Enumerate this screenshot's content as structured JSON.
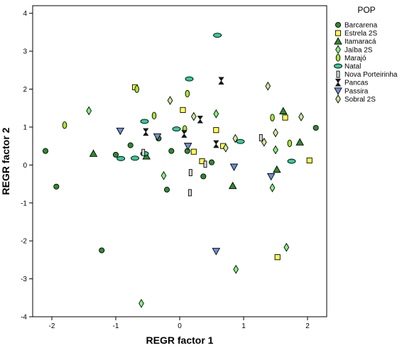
{
  "chart_data": {
    "type": "scatter",
    "xlabel": "REGR factor 1",
    "ylabel": "REGR factor 2",
    "legend_title": "POP",
    "legend_position": "right",
    "xlim": [
      -2.3,
      2.3
    ],
    "ylim": [
      -4,
      4.2
    ],
    "x_ticks": [
      "-2",
      "-1",
      "0",
      "1",
      "2"
    ],
    "y_ticks": [
      "4",
      "3",
      "2",
      "1",
      "0",
      "-1",
      "-2",
      "-3",
      "-4"
    ],
    "grid": false,
    "series": [
      {
        "name": "Barcarena",
        "marker": "circle",
        "color": "#2e8b2e",
        "points": [
          [
            -2.1,
            0.37
          ],
          [
            -1.93,
            -0.57
          ],
          [
            -1.22,
            -2.25
          ],
          [
            -1.0,
            0.27
          ],
          [
            -0.77,
            0.52
          ],
          [
            -0.33,
            0.7
          ],
          [
            -0.2,
            -0.65
          ],
          [
            -0.13,
            0.37
          ],
          [
            0.12,
            0.37
          ],
          [
            0.37,
            -0.3
          ],
          [
            0.5,
            0.07
          ],
          [
            2.13,
            0.98
          ]
        ]
      },
      {
        "name": "Estrela 2S",
        "marker": "square",
        "color": "#ffff4d",
        "points": [
          [
            -0.7,
            2.05
          ],
          [
            0.05,
            1.45
          ],
          [
            0.22,
            0.35
          ],
          [
            0.35,
            0.1
          ],
          [
            0.57,
            0.92
          ],
          [
            0.68,
            0.5
          ],
          [
            1.53,
            -2.43
          ],
          [
            1.65,
            1.25
          ],
          [
            2.03,
            0.12
          ]
        ]
      },
      {
        "name": "Itamaracá",
        "marker": "triangle",
        "color": "#2e8b2e",
        "points": [
          [
            -1.35,
            0.3
          ],
          [
            -0.52,
            0.23
          ],
          [
            0.83,
            -0.55
          ],
          [
            1.52,
            -0.12
          ],
          [
            1.62,
            1.42
          ],
          [
            1.88,
            0.6
          ]
        ]
      },
      {
        "name": "Jaíba 2S",
        "marker": "diamond",
        "color": "#7fff7f",
        "points": [
          [
            -1.42,
            1.43
          ],
          [
            -0.6,
            -3.65
          ],
          [
            -0.25,
            -0.28
          ],
          [
            0.57,
            1.35
          ],
          [
            0.88,
            -2.75
          ],
          [
            1.45,
            -0.6
          ],
          [
            1.5,
            0.4
          ],
          [
            1.67,
            -2.17
          ]
        ]
      },
      {
        "name": "Marajó",
        "marker": "ellipse",
        "color": "#a8e632",
        "points": [
          [
            -1.8,
            1.05
          ],
          [
            -0.67,
            2.0
          ],
          [
            -0.4,
            1.3
          ],
          [
            0.08,
            0.95
          ],
          [
            0.12,
            1.88
          ],
          [
            1.45,
            1.25
          ],
          [
            1.72,
            0.57
          ]
        ]
      },
      {
        "name": "Natal",
        "marker": "wide-ellipse",
        "color": "#33cc99",
        "points": [
          [
            -0.92,
            0.17
          ],
          [
            -0.7,
            0.18
          ],
          [
            -0.55,
            1.15
          ],
          [
            -0.55,
            0.3
          ],
          [
            -0.05,
            0.95
          ],
          [
            0.15,
            2.27
          ],
          [
            0.59,
            3.42
          ],
          [
            0.95,
            0.62
          ],
          [
            1.75,
            0.1
          ]
        ]
      },
      {
        "name": "Nova Porteirinha",
        "marker": "bar",
        "color": "#d9d9d9",
        "points": [
          [
            -0.57,
            0.33
          ],
          [
            0.17,
            -0.2
          ],
          [
            0.16,
            -0.73
          ],
          [
            0.4,
            0.02
          ],
          [
            1.27,
            0.72
          ]
        ]
      },
      {
        "name": "Pancas",
        "marker": "hourglass",
        "color": "#1a1a1a",
        "points": [
          [
            -0.53,
            0.87
          ],
          [
            0.07,
            0.82
          ],
          [
            0.32,
            1.2
          ],
          [
            0.65,
            2.22
          ],
          [
            0.57,
            0.55
          ]
        ]
      },
      {
        "name": "Passira",
        "marker": "triangle-down",
        "color": "#6f8fcf",
        "points": [
          [
            -0.93,
            0.9
          ],
          [
            -0.35,
            0.75
          ],
          [
            0.13,
            0.5
          ],
          [
            0.57,
            -2.27
          ],
          [
            0.85,
            -0.05
          ],
          [
            1.43,
            -0.3
          ]
        ]
      },
      {
        "name": "Sobral 2S",
        "marker": "diamond",
        "color": "#cceb99",
        "points": [
          [
            -0.15,
            1.7
          ],
          [
            0.22,
            1.28
          ],
          [
            0.72,
            0.45
          ],
          [
            0.87,
            0.7
          ],
          [
            1.32,
            0.6
          ],
          [
            1.38,
            2.08
          ],
          [
            1.5,
            0.85
          ],
          [
            1.9,
            1.27
          ]
        ]
      }
    ]
  }
}
